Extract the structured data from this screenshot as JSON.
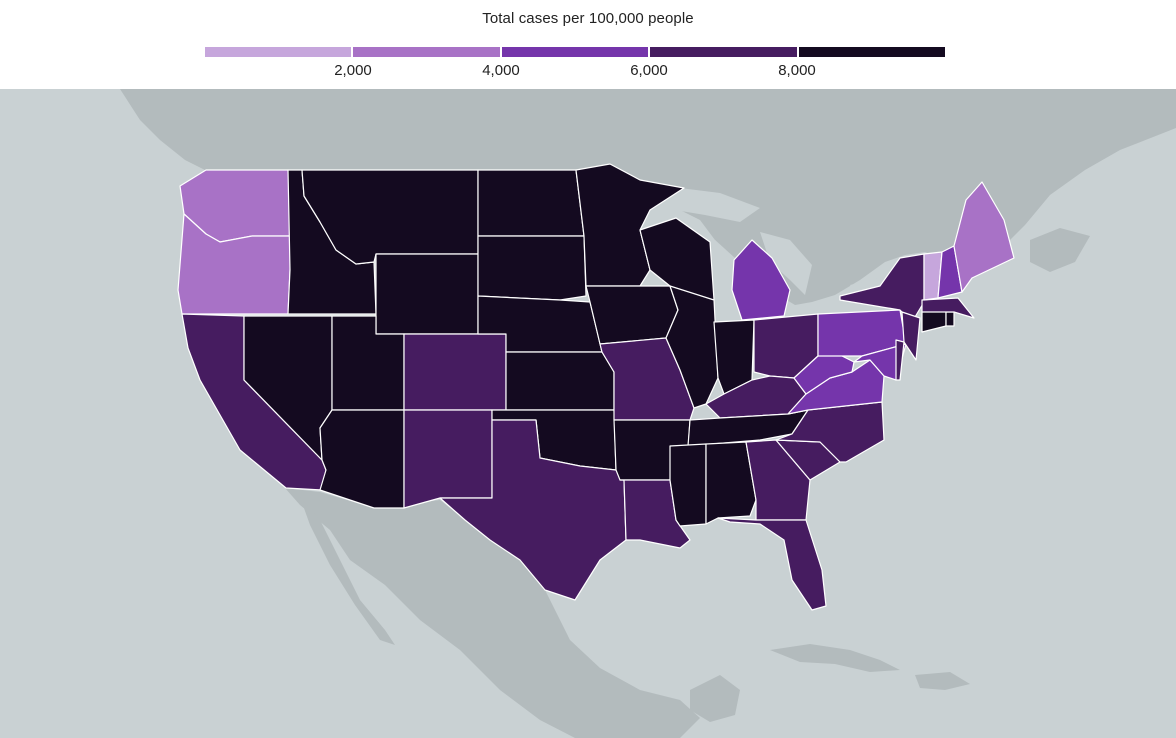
{
  "legend": {
    "title": "Total cases per 100,000 people",
    "ticks": [
      "2,000",
      "4,000",
      "6,000",
      "8,000"
    ],
    "colors": [
      "#c6a6dc",
      "#a872c6",
      "#7535ab",
      "#461c60",
      "#140a20"
    ]
  },
  "map": {
    "ocean_color": "#c9d1d3",
    "land_color": "#b3bbbd",
    "state_border_color": "#ffffff",
    "states": [
      {
        "name": "Washington",
        "bucket": 1
      },
      {
        "name": "Oregon",
        "bucket": 1
      },
      {
        "name": "California",
        "bucket": 3
      },
      {
        "name": "Idaho",
        "bucket": 4
      },
      {
        "name": "Nevada",
        "bucket": 4
      },
      {
        "name": "Montana",
        "bucket": 4
      },
      {
        "name": "Wyoming",
        "bucket": 4
      },
      {
        "name": "Utah",
        "bucket": 4
      },
      {
        "name": "Arizona",
        "bucket": 4
      },
      {
        "name": "Colorado",
        "bucket": 3
      },
      {
        "name": "New Mexico",
        "bucket": 3
      },
      {
        "name": "North Dakota",
        "bucket": 4
      },
      {
        "name": "South Dakota",
        "bucket": 4
      },
      {
        "name": "Nebraska",
        "bucket": 4
      },
      {
        "name": "Kansas",
        "bucket": 4
      },
      {
        "name": "Oklahoma",
        "bucket": 4
      },
      {
        "name": "Texas",
        "bucket": 3
      },
      {
        "name": "Minnesota",
        "bucket": 4
      },
      {
        "name": "Iowa",
        "bucket": 4
      },
      {
        "name": "Missouri",
        "bucket": 3
      },
      {
        "name": "Arkansas",
        "bucket": 4
      },
      {
        "name": "Louisiana",
        "bucket": 3
      },
      {
        "name": "Wisconsin",
        "bucket": 4
      },
      {
        "name": "Illinois",
        "bucket": 4
      },
      {
        "name": "Michigan",
        "bucket": 2
      },
      {
        "name": "Indiana",
        "bucket": 4
      },
      {
        "name": "Ohio",
        "bucket": 3
      },
      {
        "name": "Kentucky",
        "bucket": 3
      },
      {
        "name": "Tennessee",
        "bucket": 4
      },
      {
        "name": "Mississippi",
        "bucket": 4
      },
      {
        "name": "Alabama",
        "bucket": 4
      },
      {
        "name": "Georgia",
        "bucket": 3
      },
      {
        "name": "Florida",
        "bucket": 3
      },
      {
        "name": "South Carolina",
        "bucket": 3
      },
      {
        "name": "North Carolina",
        "bucket": 3
      },
      {
        "name": "Virginia",
        "bucket": 2
      },
      {
        "name": "West Virginia",
        "bucket": 2
      },
      {
        "name": "Pennsylvania",
        "bucket": 2
      },
      {
        "name": "New York",
        "bucket": 3
      },
      {
        "name": "Maryland",
        "bucket": 2
      },
      {
        "name": "Delaware",
        "bucket": 3
      },
      {
        "name": "New Jersey",
        "bucket": 3
      },
      {
        "name": "Connecticut",
        "bucket": 4
      },
      {
        "name": "Rhode Island",
        "bucket": 4
      },
      {
        "name": "Massachusetts",
        "bucket": 3
      },
      {
        "name": "Vermont",
        "bucket": 0
      },
      {
        "name": "New Hampshire",
        "bucket": 2
      },
      {
        "name": "Maine",
        "bucket": 1
      }
    ]
  }
}
